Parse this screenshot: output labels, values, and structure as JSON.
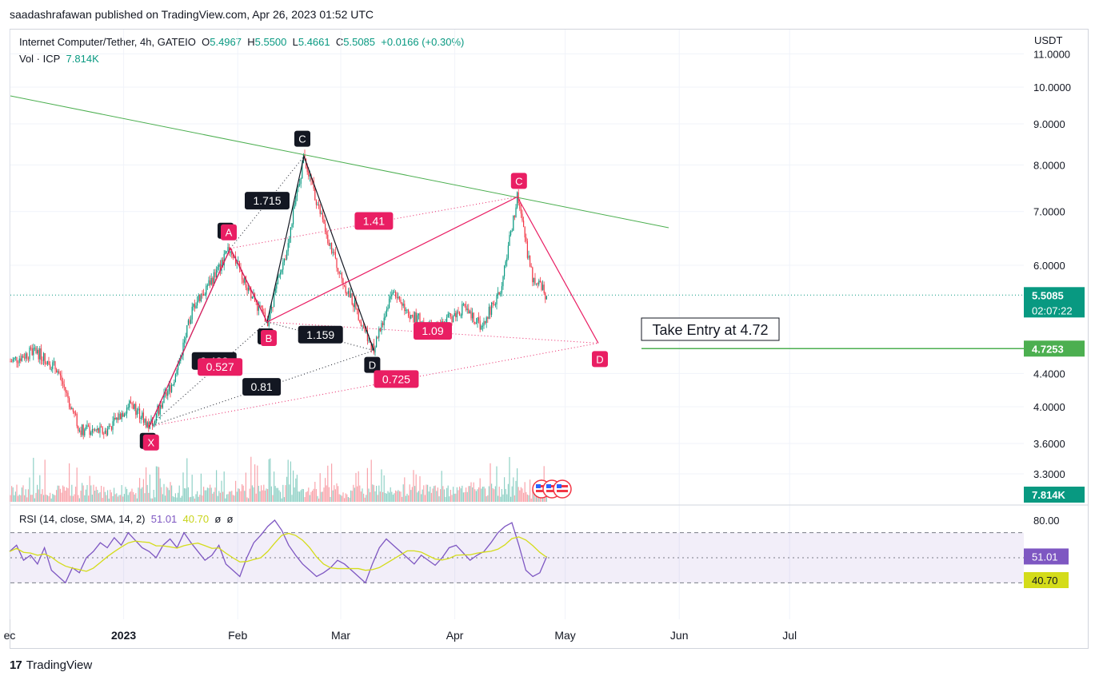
{
  "header": {
    "publisher": "saadashrafawan published on TradingView.com, Apr 26, 2023 01:52 UTC"
  },
  "legend": {
    "symbol": "Internet Computer/Tether, 4h, GATEIO",
    "open_label": "O",
    "open": "5.4967",
    "high_label": "H",
    "high": "5.5500",
    "low_label": "L",
    "low": "5.4661",
    "close_label": "C",
    "close": "5.5085",
    "change": "+0.0166 (+0.30%)",
    "volume_label": "Vol · ICP",
    "volume": "7.814K"
  },
  "rsi_legend": {
    "label": "RSI (14, close, SMA, 14, 2)",
    "rsi": "51.01",
    "sma": "40.70",
    "extra1": "ø",
    "extra2": "ø"
  },
  "currency": "USDT",
  "footer": {
    "logo": "17",
    "brand": "TradingView"
  },
  "colors": {
    "up": "#089981",
    "down": "#f23645",
    "pattern": "#e91e63",
    "trendline": "#4caf50",
    "rsi": "#7e57c2",
    "rsi_sma": "#d4dc1a"
  },
  "annotation": {
    "text": "Take Entry at 4.72"
  },
  "chart_data": [
    {
      "type": "line",
      "title": "Internet Computer/Tether, 4h, GATEIO",
      "scale": "log",
      "ylim": [
        3.0,
        11.5
      ],
      "y_ticks": [
        "11.0000",
        "10.0000",
        "9.0000",
        "8.0000",
        "7.0000",
        "6.0000",
        "4.4000",
        "4.0000",
        "3.6000",
        "3.3000"
      ],
      "x_ticks": [
        "ec",
        "2023",
        "Feb",
        "Mar",
        "Apr",
        "May",
        "Jun",
        "Jul"
      ],
      "price_badges": [
        {
          "value": "5.5085",
          "sub": "02:07:22",
          "color": "#089981"
        },
        {
          "value": "4.7253",
          "color": "#4caf50"
        },
        {
          "value": "7.814K",
          "color": "#089981"
        }
      ],
      "pattern_points": [
        {
          "label": "X",
          "date": "2023-01-08",
          "price": 3.78
        },
        {
          "label": "A",
          "date": "2023-01-30",
          "price": 6.3
        },
        {
          "label": "B",
          "date": "2023-02-09",
          "price": 5.1
        },
        {
          "label": "C",
          "date": "2023-02-19",
          "price": 8.2
        },
        {
          "label": "D",
          "date": "2023-03-10",
          "price": 4.7
        },
        {
          "label": "C",
          "date": "2023-04-18",
          "price": 7.3
        },
        {
          "label": "D",
          "date": "2023-05-10",
          "price": 4.8
        }
      ],
      "ratios_black": [
        "1.715",
        "1.159",
        "0.81",
        "0.423"
      ],
      "ratios_pink": [
        "1.41",
        "1.09",
        "0.725",
        "0.527"
      ],
      "price_path": [
        [
          "2022-12-01",
          4.55
        ],
        [
          "2022-12-08",
          4.7
        ],
        [
          "2022-12-14",
          4.45
        ],
        [
          "2022-12-20",
          3.75
        ],
        [
          "2022-12-27",
          3.72
        ],
        [
          "2023-01-03",
          4.05
        ],
        [
          "2023-01-08",
          3.78
        ],
        [
          "2023-01-15",
          4.35
        ],
        [
          "2023-01-20",
          5.35
        ],
        [
          "2023-01-26",
          5.85
        ],
        [
          "2023-01-30",
          6.3
        ],
        [
          "2023-02-03",
          5.7
        ],
        [
          "2023-02-09",
          5.1
        ],
        [
          "2023-02-14",
          6.2
        ],
        [
          "2023-02-19",
          8.2
        ],
        [
          "2023-02-24",
          6.8
        ],
        [
          "2023-03-01",
          5.8
        ],
        [
          "2023-03-06",
          5.2
        ],
        [
          "2023-03-10",
          4.7
        ],
        [
          "2023-03-15",
          5.6
        ],
        [
          "2023-03-20",
          5.2
        ],
        [
          "2023-03-27",
          5.0
        ],
        [
          "2023-04-03",
          5.3
        ],
        [
          "2023-04-08",
          5.05
        ],
        [
          "2023-04-13",
          5.5
        ],
        [
          "2023-04-18",
          7.3
        ],
        [
          "2023-04-22",
          5.8
        ],
        [
          "2023-04-26",
          5.5085
        ]
      ]
    },
    {
      "type": "line",
      "title": "RSI (14, close, SMA, 14, 2)",
      "ylim": [
        20,
        85
      ],
      "y_ticks": [
        "80.00"
      ],
      "bands": [
        70,
        30
      ],
      "series": [
        {
          "name": "RSI",
          "last": 51.01,
          "values": [
            55,
            60,
            48,
            52,
            45,
            58,
            40,
            35,
            30,
            42,
            38,
            50,
            55,
            62,
            58,
            66,
            60,
            70,
            64,
            58,
            55,
            50,
            60,
            65,
            58,
            70,
            62,
            55,
            48,
            52,
            60,
            45,
            40,
            35,
            50,
            62,
            68,
            75,
            80,
            72,
            60,
            52,
            45,
            40,
            35,
            38,
            42,
            48,
            45,
            40,
            35,
            30,
            45,
            58,
            65,
            60,
            55,
            50,
            45,
            52,
            48,
            44,
            50,
            58,
            60,
            54,
            48,
            52,
            55,
            62,
            70,
            75,
            78,
            60,
            40,
            35,
            38,
            51.01
          ]
        },
        {
          "name": "SMA",
          "last": 40.7
        }
      ]
    }
  ]
}
